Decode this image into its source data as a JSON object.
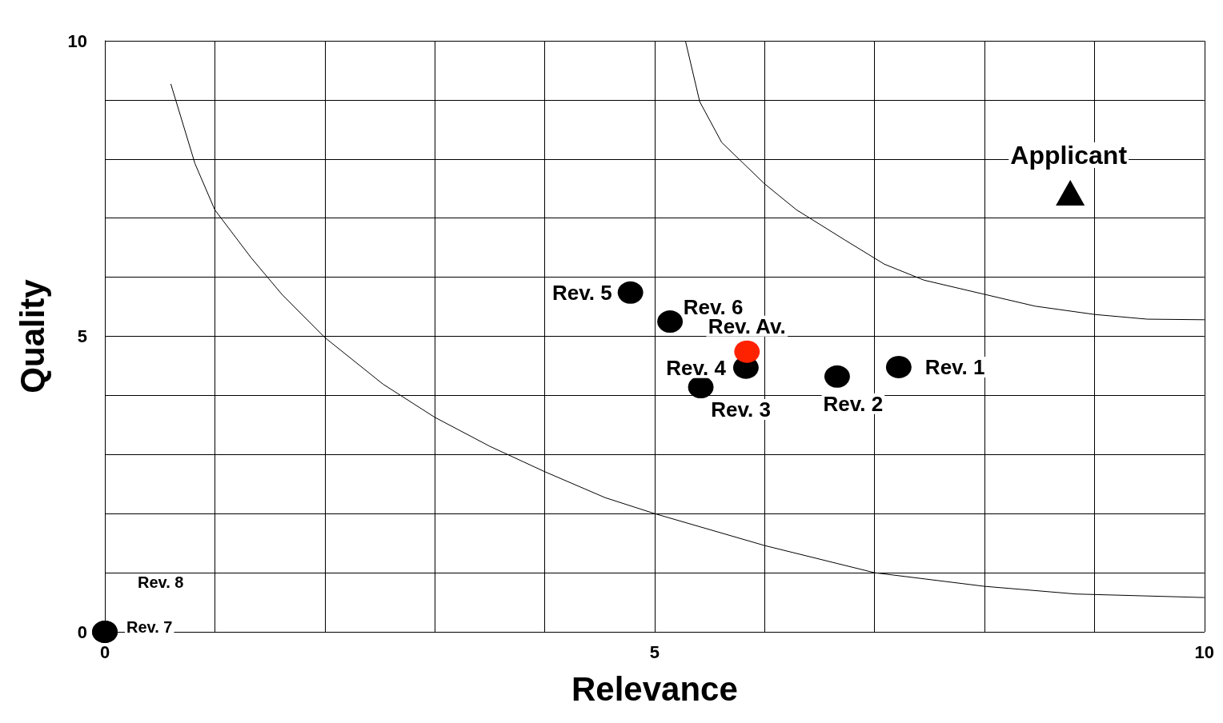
{
  "chart_data": {
    "type": "scatter",
    "xlabel": "Relevance",
    "ylabel": "Quality",
    "xlim": [
      0,
      10
    ],
    "ylim": [
      0,
      10
    ],
    "xticks": [
      0,
      {
        "value": 1,
        "label": null
      },
      {
        "value": 2,
        "label": null
      },
      {
        "value": 3,
        "label": null
      },
      {
        "value": 4,
        "label": null
      },
      5,
      {
        "value": 6,
        "label": null
      },
      {
        "value": 7,
        "label": null
      },
      {
        "value": 8,
        "label": null
      },
      {
        "value": 9,
        "label": null
      },
      10
    ],
    "yticks": [
      0,
      {
        "value": 1,
        "label": null
      },
      {
        "value": 2,
        "label": null
      },
      {
        "value": 3,
        "label": null
      },
      {
        "value": 4,
        "label": null
      },
      5,
      {
        "value": 6,
        "label": null
      },
      {
        "value": 7,
        "label": null
      },
      {
        "value": 8,
        "label": null
      },
      {
        "value": 9,
        "label": null
      },
      10
    ],
    "grid": true,
    "legend": false,
    "marker": "circle",
    "series": [
      {
        "type": "line",
        "marker": "none",
        "color": "#000000",
        "x": [
          0.6,
          0.82,
          1.0,
          1.33,
          1.61,
          2.0,
          2.53,
          3.0,
          3.5,
          4.0,
          4.55,
          5.0,
          6.0,
          7.0,
          8.0,
          8.83,
          10
        ],
        "values": [
          9.27,
          7.92,
          7.14,
          6.33,
          5.71,
          4.98,
          4.19,
          3.63,
          3.14,
          2.71,
          2.27,
          2.0,
          1.46,
          1.0,
          0.77,
          0.64,
          0.58
        ]
      },
      {
        "type": "line",
        "marker": "none",
        "color": "#000000",
        "x": [
          5.28,
          5.41,
          5.61,
          6.0,
          6.29,
          6.73,
          7.09,
          7.45,
          8.0,
          8.46,
          9.0,
          9.48,
          10
        ],
        "values": [
          10,
          8.97,
          8.28,
          7.58,
          7.14,
          6.63,
          6.22,
          5.95,
          5.71,
          5.51,
          5.37,
          5.29,
          5.28
        ]
      },
      {
        "name": "Rev. 1",
        "color": "#000000",
        "x": [
          7.22
        ],
        "values": [
          4.48
        ]
      },
      {
        "name": "Rev. 2",
        "color": "#000000",
        "x": [
          6.66
        ],
        "values": [
          4.32
        ]
      },
      {
        "name": "Rev. 3",
        "color": "#000000",
        "x": [
          5.42
        ],
        "values": [
          4.14
        ]
      },
      {
        "name": "Rev. 4",
        "color": "#000000",
        "x": [
          5.83
        ],
        "values": [
          4.47
        ]
      },
      {
        "name": "Rev. 5",
        "color": "#000000",
        "x": [
          4.78
        ],
        "values": [
          5.74
        ]
      },
      {
        "name": "Rev. 6",
        "color": "#000000",
        "x": [
          5.14
        ],
        "values": [
          5.25
        ]
      },
      {
        "name": "Rev. 7",
        "color": "#000000",
        "x": [
          0
        ],
        "values": [
          0
        ]
      },
      {
        "name": "Rev. 8",
        "color": "#000000",
        "x": [
          0
        ],
        "values": [
          0
        ]
      },
      {
        "name": "Rev. Av.",
        "color": "#ff2200",
        "x": [
          5.84
        ],
        "values": [
          4.74
        ]
      },
      {
        "type": "scatter",
        "marker": "triangle",
        "name": "Applicant",
        "color": "#000000",
        "x": [
          8.78
        ],
        "values": [
          7.43
        ]
      }
    ]
  }
}
